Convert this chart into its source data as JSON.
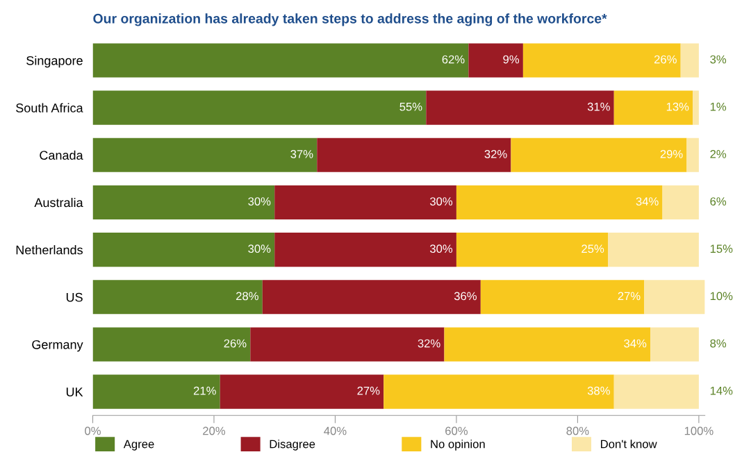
{
  "chart_data": {
    "type": "bar",
    "orientation": "horizontal",
    "stacked": true,
    "title": "Our organization has already taken steps to address the aging of the workforce*",
    "categories": [
      "Singapore",
      "South Africa",
      "Canada",
      "Australia",
      "Netherlands",
      "US",
      "Germany",
      "UK"
    ],
    "series": [
      {
        "name": "Agree",
        "color": "#5b8226",
        "values": [
          62,
          55,
          37,
          30,
          30,
          28,
          26,
          21
        ],
        "value_labels": [
          "62%",
          "55%",
          "37%",
          "30%",
          "30%",
          "28%",
          "26%",
          "21%"
        ]
      },
      {
        "name": "Disagree",
        "color": "#9b1b24",
        "values": [
          9,
          31,
          32,
          30,
          30,
          36,
          32,
          27
        ],
        "value_labels": [
          "9%",
          "31%",
          "32%",
          "30%",
          "30%",
          "36%",
          "32%",
          "27%"
        ]
      },
      {
        "name": "No opinion",
        "color": "#f8c81e",
        "values": [
          26,
          13,
          29,
          34,
          25,
          27,
          34,
          38
        ],
        "value_labels": [
          "26%",
          "13%",
          "29%",
          "34%",
          "25%",
          "27%",
          "34%",
          "38%"
        ]
      },
      {
        "name": "Don't know",
        "color": "#fbe7a8",
        "values": [
          3,
          1,
          2,
          6,
          15,
          10,
          8,
          14
        ],
        "value_labels": [
          "3%",
          "1%",
          "2%",
          "6%",
          "15%",
          "10%",
          "8%",
          "14%"
        ]
      }
    ],
    "xlim": [
      0,
      101
    ],
    "xticks": [
      {
        "value": 0,
        "label": "0%"
      },
      {
        "value": 20,
        "label": "20%"
      },
      {
        "value": 40,
        "label": "40%"
      },
      {
        "value": 60,
        "label": "60%"
      },
      {
        "value": 80,
        "label": "80%"
      },
      {
        "value": 100,
        "label": "100%"
      }
    ],
    "grid": false,
    "legend": "bottom"
  }
}
